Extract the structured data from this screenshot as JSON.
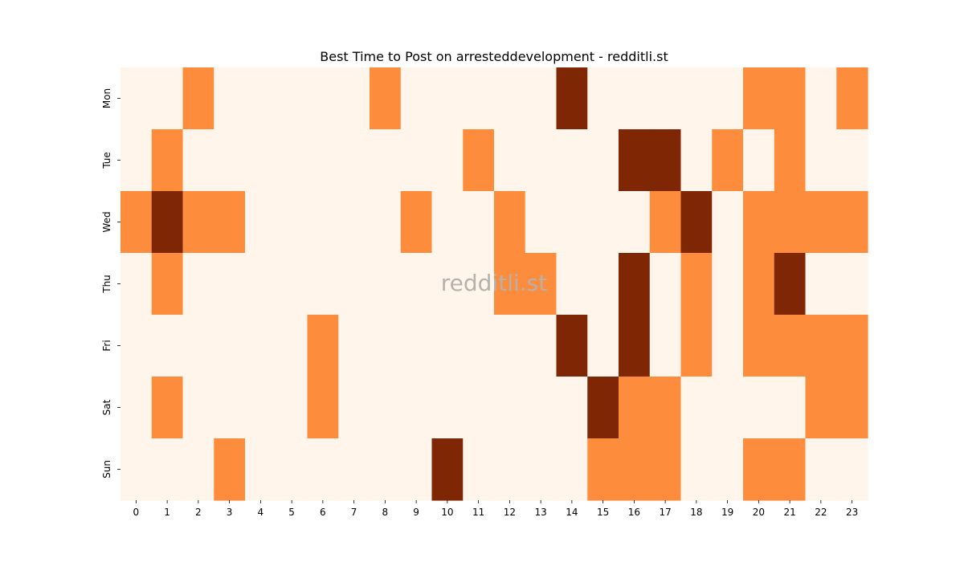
{
  "chart_data": {
    "type": "heatmap",
    "title": "Best Time to Post on arresteddevelopment - redditli.st",
    "watermark": "redditli.st",
    "xlabel": "",
    "ylabel": "",
    "x_categories": [
      "0",
      "1",
      "2",
      "3",
      "4",
      "5",
      "6",
      "7",
      "8",
      "9",
      "10",
      "11",
      "12",
      "13",
      "14",
      "15",
      "16",
      "17",
      "18",
      "19",
      "20",
      "21",
      "22",
      "23"
    ],
    "y_categories": [
      "Mon",
      "Tue",
      "Wed",
      "Thu",
      "Fri",
      "Sat",
      "Sun"
    ],
    "value_range": [
      0,
      2
    ],
    "colormap": [
      "#fff5eb",
      "#fd8d3c",
      "#7f2704"
    ],
    "values": [
      [
        0,
        0,
        1,
        0,
        0,
        0,
        0,
        0,
        1,
        0,
        0,
        0,
        0,
        0,
        2,
        0,
        0,
        0,
        0,
        0,
        1,
        1,
        0,
        1
      ],
      [
        0,
        1,
        0,
        0,
        0,
        0,
        0,
        0,
        0,
        0,
        0,
        1,
        0,
        0,
        0,
        0,
        2,
        2,
        0,
        1,
        0,
        1,
        0,
        0
      ],
      [
        1,
        2,
        1,
        1,
        0,
        0,
        0,
        0,
        0,
        1,
        0,
        0,
        1,
        0,
        0,
        0,
        0,
        1,
        2,
        0,
        1,
        1,
        1,
        1
      ],
      [
        0,
        1,
        0,
        0,
        0,
        0,
        0,
        0,
        0,
        0,
        0,
        0,
        1,
        1,
        0,
        0,
        2,
        0,
        1,
        0,
        1,
        2,
        0,
        0
      ],
      [
        0,
        0,
        0,
        0,
        0,
        0,
        1,
        0,
        0,
        0,
        0,
        0,
        0,
        0,
        2,
        0,
        2,
        0,
        1,
        0,
        1,
        1,
        1,
        1
      ],
      [
        0,
        1,
        0,
        0,
        0,
        0,
        1,
        0,
        0,
        0,
        0,
        0,
        0,
        0,
        0,
        2,
        1,
        1,
        0,
        0,
        0,
        0,
        1,
        1
      ],
      [
        0,
        0,
        0,
        1,
        0,
        0,
        0,
        0,
        0,
        0,
        2,
        0,
        0,
        0,
        0,
        1,
        1,
        1,
        0,
        0,
        1,
        1,
        0,
        0
      ]
    ]
  }
}
